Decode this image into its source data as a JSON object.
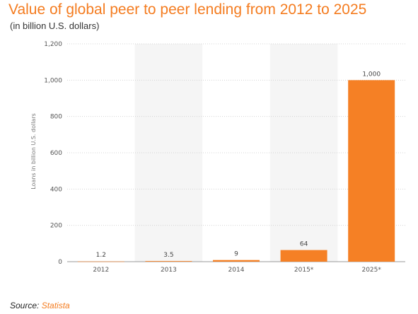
{
  "header": {
    "title": "Value of global peer to peer lending from 2012 to 2025",
    "subtitle": "(in billion U.S. dollars)"
  },
  "footer": {
    "source_label": "Source:",
    "source_name": "Statista"
  },
  "colors": {
    "accent": "#f47c20",
    "bar": "#f58025",
    "band": "#f5f5f5"
  },
  "chart_data": {
    "type": "bar",
    "categories": [
      "2012",
      "2013",
      "2014",
      "2015*",
      "2025*"
    ],
    "values": [
      1.2,
      3.5,
      9,
      64,
      1000
    ],
    "value_labels": [
      "1.2",
      "3.5",
      "9",
      "64",
      "1,000"
    ],
    "ylabel": "Loans in billion U.S. dollars",
    "ylim": [
      0,
      1200
    ],
    "yticks": [
      0,
      200,
      400,
      600,
      800,
      1000,
      1200
    ],
    "ytick_labels": [
      "0",
      "200",
      "400",
      "600",
      "800",
      "1,000",
      "1,200"
    ],
    "grid": true
  }
}
